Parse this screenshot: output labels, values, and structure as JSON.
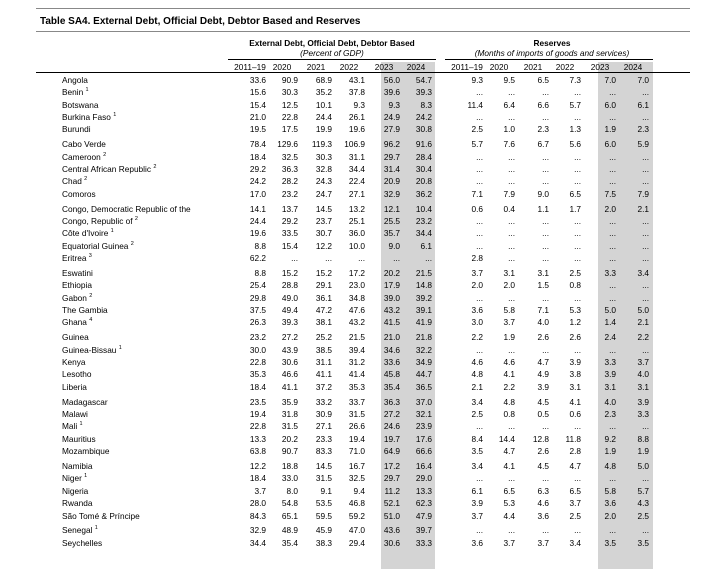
{
  "title": "Table SA4. External Debt, Official Debt, Debtor Based and Reserves",
  "groups": [
    {
      "title": "External Debt, Official Debt, Debtor Based",
      "unit": "(Percent of GDP)",
      "years": [
        "2011–19",
        "2020",
        "2021",
        "2022",
        "2023",
        "2024"
      ]
    },
    {
      "title": "Reserves",
      "unit": "(Months of imports of goods and services)",
      "years": [
        "2011–19",
        "2020",
        "2021",
        "2022",
        "2023",
        "2024"
      ]
    }
  ],
  "rows": [
    {
      "name": "Angola",
      "values": [
        "33.6",
        "90.9",
        "68.9",
        "43.1",
        "56.0",
        "54.7",
        "9.3",
        "9.5",
        "6.5",
        "7.3",
        "7.0",
        "7.0"
      ]
    },
    {
      "name": "Benin",
      "note": "1",
      "values": [
        "15.6",
        "30.3",
        "35.2",
        "37.8",
        "39.6",
        "39.3",
        "...",
        "...",
        "...",
        "...",
        "...",
        "..."
      ]
    },
    {
      "name": "Botswana",
      "values": [
        "15.4",
        "12.5",
        "10.1",
        "9.3",
        "9.3",
        "8.3",
        "11.4",
        "6.4",
        "6.6",
        "5.7",
        "6.0",
        "6.1"
      ]
    },
    {
      "name": "Burkina Faso",
      "note": "1",
      "values": [
        "21.0",
        "22.8",
        "24.4",
        "26.1",
        "24.9",
        "24.2",
        "...",
        "...",
        "...",
        "...",
        "...",
        "..."
      ]
    },
    {
      "name": "Burundi",
      "values": [
        "19.5",
        "17.5",
        "19.9",
        "19.6",
        "27.9",
        "30.8",
        "2.5",
        "1.0",
        "2.3",
        "1.3",
        "1.9",
        "2.3"
      ]
    },
    {
      "name": "Cabo Verde",
      "values": [
        "78.4",
        "129.6",
        "119.3",
        "106.9",
        "96.2",
        "91.6",
        "5.7",
        "7.6",
        "6.7",
        "5.6",
        "6.0",
        "5.9"
      ]
    },
    {
      "name": "Cameroon",
      "note": "2",
      "values": [
        "18.4",
        "32.5",
        "30.3",
        "31.1",
        "29.7",
        "28.4",
        "...",
        "...",
        "...",
        "...",
        "...",
        "..."
      ]
    },
    {
      "name": "Central African Republic",
      "note": "2",
      "values": [
        "29.2",
        "36.3",
        "32.8",
        "34.4",
        "31.4",
        "30.4",
        "...",
        "...",
        "...",
        "...",
        "...",
        "..."
      ]
    },
    {
      "name": "Chad",
      "note": "2",
      "values": [
        "24.2",
        "28.2",
        "24.3",
        "22.4",
        "20.9",
        "20.8",
        "...",
        "...",
        "...",
        "...",
        "...",
        "..."
      ]
    },
    {
      "name": "Comoros",
      "values": [
        "17.0",
        "23.2",
        "24.7",
        "27.1",
        "32.9",
        "36.2",
        "7.1",
        "7.9",
        "9.0",
        "6.5",
        "7.5",
        "7.9"
      ]
    },
    {
      "name": "Congo, Democratic Republic of the",
      "values": [
        "14.1",
        "13.7",
        "14.5",
        "13.2",
        "12.1",
        "10.4",
        "0.6",
        "0.4",
        "1.1",
        "1.7",
        "2.0",
        "2.1"
      ]
    },
    {
      "name": "Congo, Republic of",
      "note": "2",
      "values": [
        "24.4",
        "29.2",
        "23.7",
        "25.1",
        "25.5",
        "23.2",
        "...",
        "...",
        "...",
        "...",
        "...",
        "..."
      ]
    },
    {
      "name": "Côte d'Ivoire",
      "note": "1",
      "values": [
        "19.6",
        "33.5",
        "30.7",
        "36.0",
        "35.7",
        "34.4",
        "...",
        "...",
        "...",
        "...",
        "...",
        "..."
      ]
    },
    {
      "name": "Equatorial Guinea",
      "note": "2",
      "values": [
        "8.8",
        "15.4",
        "12.2",
        "10.0",
        "9.0",
        "6.1",
        "...",
        "...",
        "...",
        "...",
        "...",
        "..."
      ]
    },
    {
      "name": "Eritrea",
      "note": "3",
      "values": [
        "62.2",
        "...",
        "...",
        "...",
        "...",
        "...",
        "2.8",
        "...",
        "...",
        "...",
        "...",
        "..."
      ]
    },
    {
      "name": "Eswatini",
      "values": [
        "8.8",
        "15.2",
        "15.2",
        "17.2",
        "20.2",
        "21.5",
        "3.7",
        "3.1",
        "3.1",
        "2.5",
        "3.3",
        "3.4"
      ]
    },
    {
      "name": "Ethiopia",
      "values": [
        "25.4",
        "28.8",
        "29.1",
        "23.0",
        "17.9",
        "14.8",
        "2.0",
        "2.0",
        "1.5",
        "0.8",
        "...",
        "..."
      ]
    },
    {
      "name": "Gabon",
      "note": "2",
      "values": [
        "29.8",
        "49.0",
        "36.1",
        "34.8",
        "39.0",
        "39.2",
        "...",
        "...",
        "...",
        "...",
        "...",
        "..."
      ]
    },
    {
      "name": "The Gambia",
      "values": [
        "37.5",
        "49.4",
        "47.2",
        "47.6",
        "43.2",
        "39.1",
        "3.6",
        "5.8",
        "7.1",
        "5.3",
        "5.0",
        "5.0"
      ]
    },
    {
      "name": "Ghana",
      "note": "4",
      "values": [
        "26.3",
        "39.3",
        "38.1",
        "43.2",
        "41.5",
        "41.9",
        "3.0",
        "3.7",
        "4.0",
        "1.2",
        "1.4",
        "2.1"
      ]
    },
    {
      "name": "Guinea",
      "values": [
        "23.2",
        "27.2",
        "25.2",
        "21.5",
        "21.0",
        "21.8",
        "2.2",
        "1.9",
        "2.6",
        "2.6",
        "2.4",
        "2.2"
      ]
    },
    {
      "name": "Guinea-Bissau",
      "note": "1",
      "values": [
        "30.0",
        "43.9",
        "38.5",
        "39.4",
        "34.6",
        "32.2",
        "...",
        "...",
        "...",
        "...",
        "...",
        "..."
      ]
    },
    {
      "name": "Kenya",
      "values": [
        "22.8",
        "30.6",
        "31.1",
        "31.2",
        "33.6",
        "34.9",
        "4.6",
        "4.6",
        "4.7",
        "3.9",
        "3.3",
        "3.7"
      ]
    },
    {
      "name": "Lesotho",
      "values": [
        "35.3",
        "46.6",
        "41.1",
        "41.4",
        "45.8",
        "44.7",
        "4.8",
        "4.1",
        "4.9",
        "3.8",
        "3.9",
        "4.0"
      ]
    },
    {
      "name": "Liberia",
      "values": [
        "18.4",
        "41.1",
        "37.2",
        "35.3",
        "35.4",
        "36.5",
        "2.1",
        "2.2",
        "3.9",
        "3.1",
        "3.1",
        "3.1"
      ]
    },
    {
      "name": "Madagascar",
      "values": [
        "23.5",
        "35.9",
        "33.2",
        "33.7",
        "36.3",
        "37.0",
        "3.4",
        "4.8",
        "4.5",
        "4.1",
        "4.0",
        "3.9"
      ]
    },
    {
      "name": "Malawi",
      "values": [
        "19.4",
        "31.8",
        "30.9",
        "31.5",
        "27.2",
        "32.1",
        "2.5",
        "0.8",
        "0.5",
        "0.6",
        "2.3",
        "3.3"
      ]
    },
    {
      "name": "Mali",
      "note": "1",
      "values": [
        "22.8",
        "31.5",
        "27.1",
        "26.6",
        "24.6",
        "23.9",
        "...",
        "...",
        "...",
        "...",
        "...",
        "..."
      ]
    },
    {
      "name": "Mauritius",
      "values": [
        "13.3",
        "20.2",
        "23.3",
        "19.4",
        "19.7",
        "17.6",
        "8.4",
        "14.4",
        "12.8",
        "11.8",
        "9.2",
        "8.8"
      ]
    },
    {
      "name": "Mozambique",
      "values": [
        "63.8",
        "90.7",
        "83.3",
        "71.0",
        "64.9",
        "66.6",
        "3.5",
        "4.7",
        "2.6",
        "2.8",
        "1.9",
        "1.9"
      ]
    },
    {
      "name": "Namibia",
      "values": [
        "12.2",
        "18.8",
        "14.5",
        "16.7",
        "17.2",
        "16.4",
        "3.4",
        "4.1",
        "4.5",
        "4.7",
        "4.8",
        "5.0"
      ]
    },
    {
      "name": "Niger",
      "note": "1",
      "values": [
        "18.4",
        "33.0",
        "31.5",
        "32.5",
        "29.7",
        "29.0",
        "...",
        "...",
        "...",
        "...",
        "...",
        "..."
      ]
    },
    {
      "name": "Nigeria",
      "values": [
        "3.7",
        "8.0",
        "9.1",
        "9.4",
        "11.2",
        "13.3",
        "6.1",
        "6.5",
        "6.3",
        "6.5",
        "5.8",
        "5.7"
      ]
    },
    {
      "name": "Rwanda",
      "values": [
        "28.0",
        "54.8",
        "53.5",
        "46.8",
        "52.1",
        "62.3",
        "3.9",
        "5.3",
        "4.6",
        "3.7",
        "3.6",
        "4.3"
      ]
    },
    {
      "name": "São Tomé & Príncipe",
      "values": [
        "84.3",
        "65.1",
        "59.5",
        "59.2",
        "51.0",
        "47.9",
        "3.7",
        "4.4",
        "3.6",
        "2.5",
        "2.0",
        "2.5"
      ]
    },
    {
      "name": "Senegal",
      "note": "1",
      "values": [
        "32.9",
        "48.9",
        "45.9",
        "47.0",
        "43.6",
        "39.7",
        "...",
        "...",
        "...",
        "...",
        "...",
        "..."
      ]
    },
    {
      "name": "Seychelles",
      "values": [
        "34.4",
        "35.4",
        "38.3",
        "29.4",
        "30.6",
        "33.3",
        "3.6",
        "3.7",
        "3.7",
        "3.4",
        "3.5",
        "3.5"
      ]
    }
  ]
}
